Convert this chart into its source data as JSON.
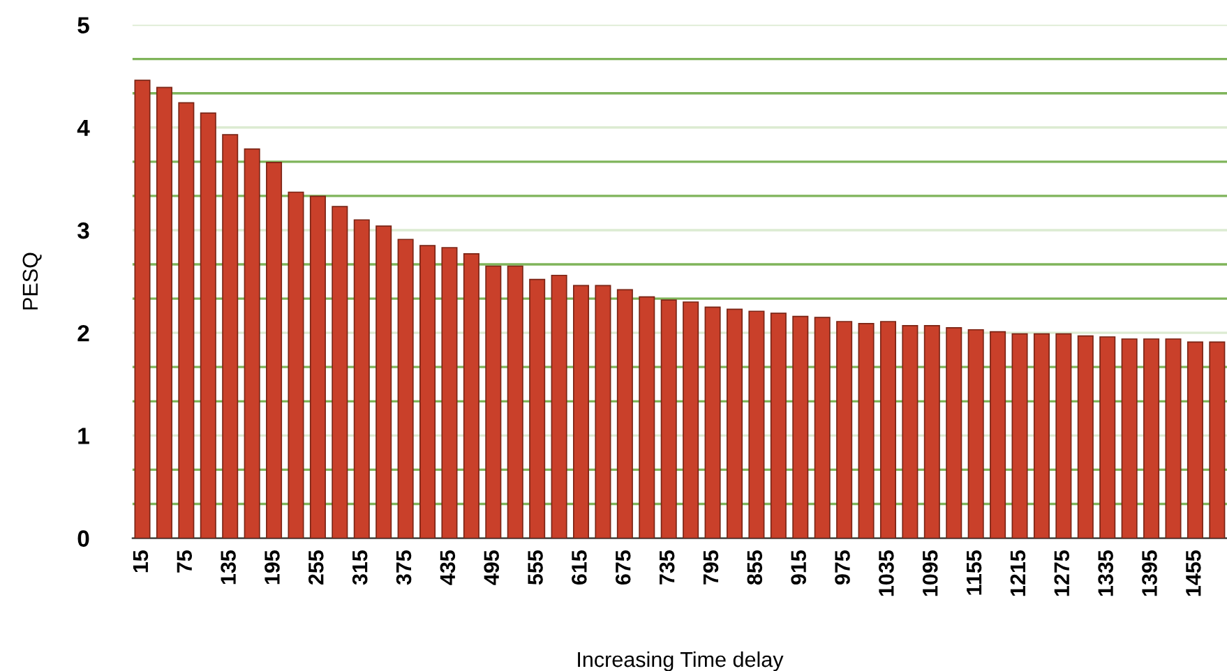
{
  "chart_data": {
    "type": "bar",
    "xlabel": "Increasing Time delay",
    "ylabel": "PESQ",
    "categories": [
      "15",
      null,
      "75",
      null,
      "135",
      null,
      "195",
      null,
      "255",
      null,
      "315",
      null,
      "375",
      null,
      "435",
      null,
      "495",
      null,
      "555",
      null,
      "615",
      null,
      "675",
      null,
      "735",
      null,
      "795",
      null,
      "855",
      null,
      "915",
      null,
      "975",
      null,
      "1035",
      null,
      "1095",
      null,
      "1155",
      null,
      "1215",
      null,
      "1275",
      null,
      "1335",
      null,
      "1395",
      null,
      "1455",
      null
    ],
    "values": [
      4.46,
      4.39,
      4.24,
      4.14,
      3.93,
      3.79,
      3.66,
      3.37,
      3.33,
      3.23,
      3.1,
      3.04,
      2.91,
      2.85,
      2.83,
      2.77,
      2.65,
      2.65,
      2.52,
      2.56,
      2.46,
      2.46,
      2.42,
      2.35,
      2.32,
      2.3,
      2.25,
      2.23,
      2.21,
      2.19,
      2.16,
      2.15,
      2.11,
      2.09,
      2.11,
      2.07,
      2.07,
      2.05,
      2.03,
      2.01,
      1.99,
      1.99,
      1.99,
      1.97,
      1.96,
      1.94,
      1.94,
      1.94,
      1.91,
      1.91
    ],
    "color": "#c9402a",
    "ylim": [
      0,
      5
    ],
    "yticks": [
      0,
      {
        "value": 0.333,
        "label": null
      },
      {
        "value": 0.667,
        "label": null
      },
      1,
      {
        "value": 1.333,
        "label": null
      },
      {
        "value": 1.667,
        "label": null
      },
      2,
      {
        "value": 2.333,
        "label": null
      },
      {
        "value": 2.667,
        "label": null
      },
      3,
      {
        "value": 3.333,
        "label": null
      },
      {
        "value": 3.667,
        "label": null
      },
      4,
      {
        "value": 4.333,
        "label": null
      },
      {
        "value": 4.667,
        "label": null
      },
      5
    ],
    "grid": "y"
  }
}
